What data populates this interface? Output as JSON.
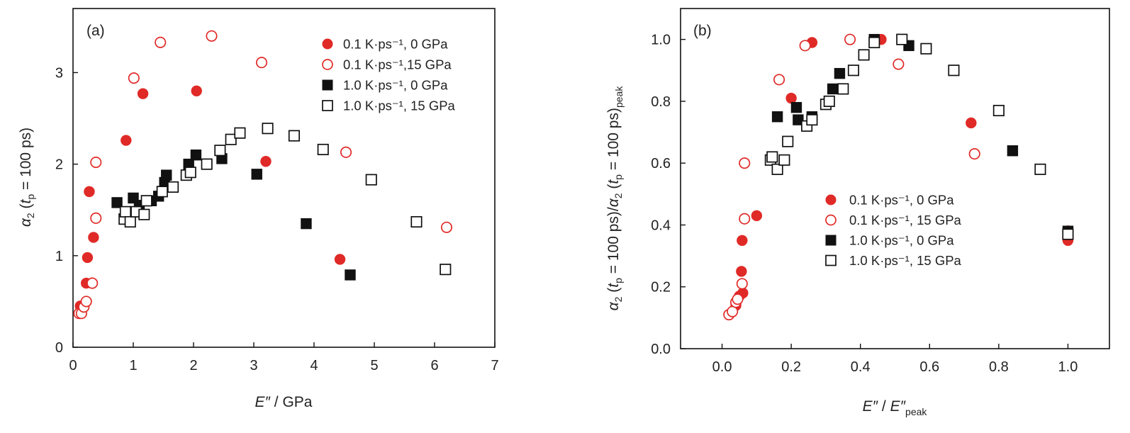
{
  "chart_data": [
    {
      "panel_label": "(a)",
      "type": "scatter",
      "xlabel": {
        "main": "E″",
        "tail": " / GPa"
      },
      "ylabel": {
        "alpha": "α",
        "sub1": "2",
        "mid1": " (",
        "t": "t",
        "sub2": "p",
        "tail": " = 100 ps)"
      },
      "xlim": [
        0,
        7
      ],
      "ylim": [
        0,
        3.7
      ],
      "xticks": [
        "0",
        "1",
        "2",
        "3",
        "4",
        "5",
        "6",
        "7"
      ],
      "yticks": [
        "0",
        "1",
        "2",
        "3"
      ],
      "xtick_values": [
        0,
        1,
        2,
        3,
        4,
        5,
        6,
        7
      ],
      "ytick_values": [
        0,
        1,
        2,
        3
      ],
      "legend_position": "top-right",
      "series": [
        {
          "name": "0.1 K·ps⁻¹, 0 GPa",
          "marker": "circle",
          "filled": true,
          "color": "#e02a27",
          "points": [
            [
              0.12,
              0.45
            ],
            [
              0.22,
              0.7
            ],
            [
              0.24,
              0.98
            ],
            [
              0.34,
              1.2
            ],
            [
              0.27,
              1.7
            ],
            [
              0.88,
              2.26
            ],
            [
              1.16,
              2.77
            ],
            [
              2.05,
              2.8
            ],
            [
              3.2,
              2.03
            ],
            [
              4.43,
              0.96
            ]
          ]
        },
        {
          "name": "0.1 K·ps⁻¹,15 GPa",
          "marker": "circle",
          "filled": false,
          "color": "#e02a27",
          "points": [
            [
              0.1,
              0.37
            ],
            [
              0.14,
              0.37
            ],
            [
              0.18,
              0.44
            ],
            [
              0.22,
              0.5
            ],
            [
              0.32,
              0.7
            ],
            [
              0.38,
              1.41
            ],
            [
              0.38,
              2.02
            ],
            [
              1.01,
              2.94
            ],
            [
              1.45,
              3.33
            ],
            [
              2.3,
              3.4
            ],
            [
              3.13,
              3.11
            ],
            [
              4.53,
              2.13
            ],
            [
              6.2,
              1.31
            ]
          ]
        },
        {
          "name": "1.0 K·ps⁻¹, 0 GPa",
          "marker": "square",
          "filled": true,
          "color": "#111111",
          "points": [
            [
              0.73,
              1.58
            ],
            [
              1.0,
              1.63
            ],
            [
              1.1,
              1.55
            ],
            [
              1.3,
              1.6
            ],
            [
              1.42,
              1.65
            ],
            [
              1.52,
              1.8
            ],
            [
              1.55,
              1.88
            ],
            [
              1.92,
              2.0
            ],
            [
              2.04,
              2.1
            ],
            [
              2.47,
              2.06
            ],
            [
              3.05,
              1.89
            ],
            [
              3.87,
              1.35
            ],
            [
              4.6,
              0.79
            ]
          ]
        },
        {
          "name": "1.0 K·ps⁻¹, 15 GPa",
          "marker": "square",
          "filled": false,
          "color": "#111111",
          "points": [
            [
              0.85,
              1.4
            ],
            [
              0.87,
              1.48
            ],
            [
              0.95,
              1.37
            ],
            [
              1.05,
              1.48
            ],
            [
              1.18,
              1.45
            ],
            [
              1.22,
              1.6
            ],
            [
              1.48,
              1.7
            ],
            [
              1.66,
              1.75
            ],
            [
              1.88,
              1.88
            ],
            [
              1.95,
              1.91
            ],
            [
              2.22,
              2.0
            ],
            [
              2.44,
              2.15
            ],
            [
              2.62,
              2.27
            ],
            [
              2.77,
              2.34
            ],
            [
              3.23,
              2.39
            ],
            [
              3.67,
              2.31
            ],
            [
              4.15,
              2.16
            ],
            [
              4.95,
              1.83
            ],
            [
              5.7,
              1.37
            ],
            [
              6.18,
              0.85
            ]
          ]
        }
      ]
    },
    {
      "panel_label": "(b)",
      "type": "scatter",
      "xlabel": {
        "main": "E″",
        "mid": " / ",
        "main2": "E″",
        "sub": "peak"
      },
      "ylabel": {
        "alpha": "α",
        "sub1": "2",
        "mid1": " (",
        "t": "t",
        "sub2": "p",
        "mid2": " = 100 ps)/",
        "alpha2": "α",
        "sub3": "2",
        "mid3": " (",
        "t2": "t",
        "sub4": "p",
        "tail": " = 100 ps)",
        "sub5": "peak"
      },
      "xlim": [
        -0.12,
        1.12
      ],
      "ylim": [
        0,
        1.1
      ],
      "xticks": [
        "0.0",
        "0.2",
        "0.4",
        "0.6",
        "0.8",
        "1.0"
      ],
      "yticks": [
        "0.0",
        "0.2",
        "0.4",
        "0.6",
        "0.8",
        "1.0"
      ],
      "xtick_values": [
        0,
        0.2,
        0.4,
        0.6,
        0.8,
        1.0
      ],
      "ytick_values": [
        0,
        0.2,
        0.4,
        0.6,
        0.8,
        1.0
      ],
      "legend_position": "center-right",
      "series": [
        {
          "name": "0.1 K·ps⁻¹, 0 GPa",
          "marker": "circle",
          "filled": true,
          "color": "#e02a27",
          "points": [
            [
              0.04,
              0.14
            ],
            [
              0.05,
              0.17
            ],
            [
              0.06,
              0.18
            ],
            [
              0.056,
              0.25
            ],
            [
              0.058,
              0.35
            ],
            [
              0.1,
              0.43
            ],
            [
              0.2,
              0.81
            ],
            [
              0.26,
              0.99
            ],
            [
              0.46,
              1.0
            ],
            [
              0.72,
              0.73
            ],
            [
              1.0,
              0.35
            ]
          ]
        },
        {
          "name": "0.1 K·ps⁻¹, 15 GPa",
          "marker": "circle",
          "filled": false,
          "color": "#e02a27",
          "points": [
            [
              0.02,
              0.11
            ],
            [
              0.03,
              0.12
            ],
            [
              0.04,
              0.15
            ],
            [
              0.045,
              0.16
            ],
            [
              0.058,
              0.21
            ],
            [
              0.065,
              0.42
            ],
            [
              0.065,
              0.6
            ],
            [
              0.165,
              0.87
            ],
            [
              0.24,
              0.98
            ],
            [
              0.37,
              1.0
            ],
            [
              0.51,
              0.92
            ],
            [
              0.73,
              0.63
            ],
            [
              1.0,
              0.38
            ]
          ]
        },
        {
          "name": "1.0 K·ps⁻¹, 0 GPa",
          "marker": "square",
          "filled": true,
          "color": "#111111",
          "points": [
            [
              0.16,
              0.75
            ],
            [
              0.215,
              0.78
            ],
            [
              0.22,
              0.74
            ],
            [
              0.26,
              0.75
            ],
            [
              0.32,
              0.84
            ],
            [
              0.34,
              0.89
            ],
            [
              0.44,
              1.0
            ],
            [
              0.54,
              0.98
            ],
            [
              0.84,
              0.64
            ],
            [
              1.0,
              0.38
            ]
          ]
        },
        {
          "name": "1.0 K·ps⁻¹, 15 GPa",
          "marker": "square",
          "filled": false,
          "color": "#111111",
          "points": [
            [
              0.14,
              0.61
            ],
            [
              0.145,
              0.62
            ],
            [
              0.16,
              0.58
            ],
            [
              0.18,
              0.61
            ],
            [
              0.19,
              0.67
            ],
            [
              0.245,
              0.72
            ],
            [
              0.26,
              0.74
            ],
            [
              0.3,
              0.79
            ],
            [
              0.31,
              0.8
            ],
            [
              0.35,
              0.84
            ],
            [
              0.38,
              0.9
            ],
            [
              0.41,
              0.95
            ],
            [
              0.44,
              0.99
            ],
            [
              0.52,
              1.0
            ],
            [
              0.59,
              0.97
            ],
            [
              0.67,
              0.9
            ],
            [
              0.8,
              0.77
            ],
            [
              0.92,
              0.58
            ],
            [
              1.0,
              0.37
            ]
          ]
        }
      ]
    }
  ]
}
